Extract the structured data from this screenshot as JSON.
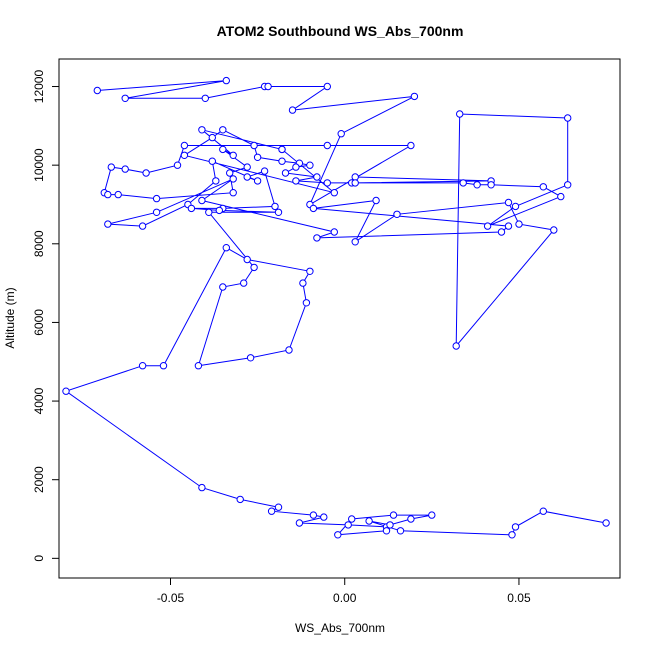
{
  "chart_data": {
    "type": "line",
    "title": "ATOM2 Southbound WS_Abs_700nm",
    "xlabel": "WS_Abs_700nm",
    "ylabel": "Altitude (m)",
    "xlim": [
      -0.082,
      0.079
    ],
    "ylim": [
      -500,
      12700
    ],
    "xticks": [
      -0.05,
      0.0,
      0.05
    ],
    "xtick_labels": [
      "-0.05",
      "0.00",
      "0.05"
    ],
    "yticks": [
      0,
      2000,
      4000,
      6000,
      8000,
      10000,
      12000
    ],
    "ytick_labels": [
      "0",
      "2000",
      "4000",
      "6000",
      "8000",
      "10000",
      "12000"
    ],
    "grid": false,
    "series_color": "#0000FF",
    "marker": "open-circle",
    "x": [
      -0.071,
      -0.034,
      -0.063,
      -0.04,
      -0.023,
      -0.022,
      -0.005,
      -0.015,
      0.02,
      -0.001,
      -0.01,
      0.019,
      -0.005,
      -0.046,
      -0.048,
      -0.057,
      -0.063,
      -0.067,
      -0.069,
      -0.068,
      -0.065,
      -0.054,
      -0.032,
      -0.033,
      -0.028,
      -0.035,
      -0.032,
      -0.041,
      -0.018,
      -0.018,
      -0.003,
      -0.046,
      -0.038,
      -0.035,
      -0.026,
      -0.025,
      -0.018,
      -0.013,
      -0.01,
      -0.014,
      -0.017,
      -0.008,
      -0.014,
      -0.005,
      0.002,
      0.003,
      0.042,
      0.003,
      0.034,
      0.038,
      0.042,
      0.057,
      0.062,
      0.041,
      0.049,
      0.064,
      0.064,
      0.033,
      0.032,
      0.06,
      0.05,
      0.047,
      0.015,
      0.003,
      0.009,
      -0.009,
      0.047,
      0.045,
      -0.008,
      -0.003,
      -0.041,
      -0.032,
      -0.054,
      -0.068,
      -0.058,
      -0.045,
      -0.037,
      -0.038,
      -0.025,
      -0.028,
      -0.023,
      -0.02,
      -0.035,
      -0.044,
      -0.036,
      -0.019,
      -0.039,
      -0.026,
      -0.029,
      -0.035,
      -0.042,
      -0.027,
      -0.016,
      -0.011,
      -0.012,
      -0.01,
      -0.028,
      -0.034,
      -0.052,
      -0.058,
      -0.08,
      -0.041,
      -0.03,
      -0.019,
      -0.021,
      -0.009,
      -0.006,
      -0.013,
      0.001,
      0.012,
      0.012,
      -0.002,
      0.002,
      0.014,
      0.025,
      0.019,
      0.013,
      0.007,
      0.016,
      0.048,
      0.049,
      0.057,
      0.075
    ],
    "y": [
      11900,
      12150,
      11700,
      11700,
      12000,
      12000,
      12000,
      11400,
      11750,
      10800,
      9000,
      10500,
      10500,
      10500,
      10000,
      9800,
      9900,
      9950,
      9300,
      9250,
      9250,
      9150,
      9300,
      9800,
      9950,
      10400,
      10250,
      10900,
      10400,
      10400,
      9300,
      10250,
      10700,
      10900,
      10500,
      10200,
      10100,
      10050,
      10000,
      9950,
      9800,
      9700,
      9600,
      9550,
      9550,
      9700,
      9600,
      9550,
      9550,
      9500,
      9500,
      9450,
      9200,
      8450,
      8950,
      9500,
      11200,
      11300,
      5400,
      8350,
      8500,
      9050,
      8750,
      8050,
      9100,
      8900,
      8450,
      8300,
      8150,
      8300,
      9100,
      9650,
      8800,
      8500,
      8450,
      9000,
      9600,
      10100,
      9600,
      9700,
      9850,
      8950,
      8900,
      8900,
      8850,
      8800,
      8800,
      7400,
      7000,
      6900,
      4900,
      5100,
      5300,
      6500,
      7000,
      7300,
      7600,
      7900,
      4900,
      4900,
      4250,
      1800,
      1500,
      1300,
      1200,
      1100,
      1050,
      900,
      850,
      800,
      700,
      600,
      1000,
      1100,
      1100,
      1000,
      850,
      950,
      700,
      600,
      800,
      1200,
      900
    ]
  }
}
